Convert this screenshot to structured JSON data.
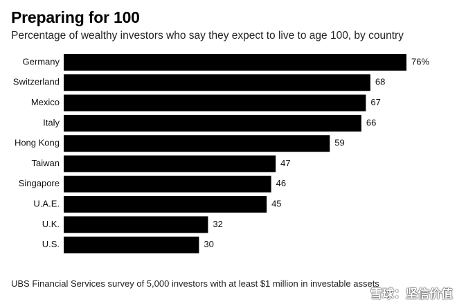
{
  "header": {
    "title": "Preparing for 100",
    "subtitle": "Percentage of wealthy investors who say they expect to live to age 100, by country"
  },
  "footer": {
    "source": "UBS Financial Services survey of 5,000 investors with at least $1 million in investable assets",
    "watermark": "雪球：坚信价值"
  },
  "colors": {
    "bar": "#000000",
    "text": "#111111",
    "background": "#ffffff"
  },
  "chart_data": {
    "type": "bar",
    "orientation": "horizontal",
    "title": "Preparing for 100",
    "subtitle": "Percentage of wealthy investors who say they expect to live to age 100, by country",
    "categories": [
      "Germany",
      "Switzerland",
      "Mexico",
      "Italy",
      "Hong Kong",
      "Taiwan",
      "Singapore",
      "U.A.E.",
      "U.K.",
      "U.S."
    ],
    "values": [
      76,
      68,
      67,
      66,
      59,
      47,
      46,
      45,
      32,
      30
    ],
    "value_labels": [
      "76%",
      "68",
      "67",
      "66",
      "59",
      "47",
      "46",
      "45",
      "32",
      "30"
    ],
    "xlim": [
      0,
      76
    ],
    "grid": false,
    "legend": "none"
  }
}
